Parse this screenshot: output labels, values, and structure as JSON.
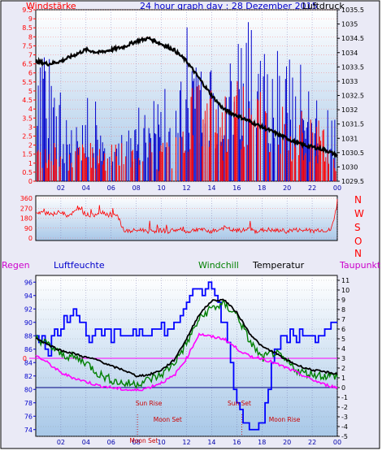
{
  "colors": {
    "wind": "#ff0000",
    "gust": "#0000cc",
    "pressure": "#000000",
    "direction": "#ff0000",
    "humidity": "#0000ff",
    "temperature": "#000000",
    "windchill": "#008000",
    "dewpoint": "#ff00ff",
    "plot_bg_top": "#ffffff",
    "plot_bg_bottom": "#a8c8e8",
    "frame_bg": "#e8e8f8"
  },
  "chart_data": [
    {
      "type": "bar",
      "title": "24 hour graph day : 28 Dezember 2015",
      "left_label": "Windstärke",
      "right_label": "Luftdruck",
      "x_ticks": [
        "02",
        "04",
        "06",
        "08",
        "10",
        "12",
        "14",
        "16",
        "18",
        "20",
        "22",
        "00"
      ],
      "y_left_ticks": [
        "0",
        "0.5",
        "1",
        "1.5",
        "2",
        "2.5",
        "3",
        "3.5",
        "4",
        "4.5",
        "5",
        "5.5",
        "6",
        "6.5",
        "7",
        "7.5",
        "8",
        "8.5",
        "9",
        "9.5"
      ],
      "y_right_ticks": [
        "1029.5",
        "1030",
        "1030.5",
        "1031",
        "1031.5",
        "1032",
        "1032.5",
        "1033",
        "1033.5",
        "1034",
        "1034.5",
        "1035",
        "1035.5"
      ],
      "ylim_left": [
        0,
        9.5
      ],
      "ylim_right": [
        1029.5,
        1035.5
      ],
      "hours": [
        1,
        2,
        3,
        4,
        5,
        6,
        7,
        8,
        9,
        10,
        11,
        12,
        13,
        14,
        15,
        16,
        17,
        18,
        19,
        20,
        21,
        22,
        23,
        24
      ],
      "wind_avg": [
        1.8,
        1.8,
        1.8,
        1.8,
        1.8,
        1.8,
        1.8,
        1.8,
        1.8,
        1.8,
        1.8,
        2.5,
        4.5,
        4.5,
        3.6,
        4.0,
        4.8,
        4.5,
        4.0,
        3.8,
        3.6,
        3.3,
        3.0,
        1.8
      ],
      "wind_gust": [
        9.1,
        7.0,
        3.5,
        4.5,
        5.0,
        3.0,
        2.8,
        3.8,
        4.2,
        4.8,
        6.0,
        7.8,
        9.3,
        8.5,
        7.0,
        7.8,
        9.3,
        9.3,
        8.0,
        7.5,
        7.0,
        6.5,
        4.8,
        4.0
      ],
      "pressure": {
        "x": [
          0,
          1,
          2,
          3,
          4,
          5,
          6,
          7,
          8,
          9,
          10,
          11,
          12,
          13,
          14,
          15,
          16,
          17,
          18,
          19,
          20,
          21,
          22,
          23,
          24
        ],
        "y": [
          1033.7,
          1033.6,
          1033.7,
          1033.9,
          1034.1,
          1034.0,
          1034.1,
          1034.2,
          1034.4,
          1034.5,
          1034.3,
          1034.1,
          1033.7,
          1033.1,
          1032.5,
          1032.0,
          1031.8,
          1031.6,
          1031.4,
          1031.2,
          1031.0,
          1030.8,
          1030.7,
          1030.6,
          1030.4
        ]
      }
    },
    {
      "type": "line",
      "right_labels": [
        "N",
        "W",
        "S",
        "O",
        "N"
      ],
      "y_left_ticks": [
        "0",
        "90",
        "180",
        "270",
        "360"
      ],
      "ylim": [
        0,
        360
      ],
      "series": [
        {
          "x": [
            0,
            0.5,
            1,
            1.5,
            2,
            2.5,
            3,
            3.5,
            4,
            4.5,
            5,
            5.5,
            6,
            6.5,
            7,
            7.5,
            8,
            8.5,
            9,
            9.5,
            10,
            10.5,
            11,
            11.5,
            12,
            12.5,
            13,
            13.5,
            14,
            14.5,
            15,
            15.5,
            16,
            16.5,
            17,
            17.5,
            18,
            18.5,
            19,
            19.5,
            20,
            20.5,
            21,
            21.5,
            22,
            22.5,
            23,
            23.5,
            24
          ],
          "values": [
            220,
            225,
            230,
            215,
            240,
            205,
            230,
            260,
            215,
            200,
            235,
            230,
            195,
            200,
            70,
            60,
            70,
            75,
            60,
            65,
            70,
            60,
            75,
            70,
            55,
            70,
            85,
            65,
            60,
            70,
            95,
            75,
            65,
            70,
            80,
            60,
            70,
            75,
            65,
            70,
            60,
            75,
            70,
            65,
            60,
            75,
            70,
            70,
            300
          ]
        }
      ]
    },
    {
      "type": "line",
      "left_label": "Regen",
      "legend": [
        "Luftfeuchte",
        "Windchill",
        "Temperatur",
        "Taupunkt"
      ],
      "y_left_ticks": [
        "74",
        "76",
        "78",
        "80",
        "82",
        "84",
        "86",
        "88",
        "90",
        "92",
        "94",
        "96"
      ],
      "y_right_ticks": [
        "-5",
        "-4",
        "-3",
        "-2",
        "-1",
        "0",
        "1",
        "2",
        "3",
        "4",
        "5",
        "6",
        "7",
        "8",
        "9",
        "10",
        "11"
      ],
      "ylim_left": [
        73,
        97
      ],
      "ylim_right": [
        -5,
        11.5
      ],
      "reference_line_label": "0",
      "annotations": [
        "Sun Rise",
        "Moon Set",
        "Moon Set",
        "Sun Set",
        "Moon Rise"
      ],
      "series": [
        {
          "x": [
            0,
            1,
            2,
            3,
            4,
            5,
            6,
            7,
            8,
            9,
            10,
            11,
            12,
            13,
            14,
            15,
            16,
            17,
            18,
            19,
            20,
            21,
            22,
            23,
            24
          ],
          "values": [
            88,
            86,
            90,
            92,
            88,
            88,
            88,
            88,
            89,
            89,
            89,
            89,
            93,
            95,
            95,
            90,
            78,
            74,
            76,
            86,
            88,
            88,
            88,
            89,
            89
          ]
        },
        {
          "x": [
            0,
            1,
            2,
            3,
            4,
            5,
            6,
            7,
            8,
            9,
            10,
            11,
            12,
            13,
            14,
            15,
            16,
            17,
            18,
            19,
            20,
            21,
            22,
            23,
            24
          ],
          "values": [
            5.1,
            4.4,
            3.4,
            3.1,
            2.6,
            1.4,
            0.8,
            0.4,
            0.4,
            0.8,
            1.3,
            2.5,
            4.5,
            7.0,
            8.2,
            8.5,
            7.5,
            4.8,
            3.0,
            3.6,
            2.6,
            1.6,
            1.4,
            1.2,
            1.2
          ]
        },
        {
          "x": [
            0,
            1,
            2,
            3,
            4,
            5,
            6,
            7,
            8,
            9,
            10,
            11,
            12,
            13,
            14,
            15,
            16,
            17,
            18,
            19,
            20,
            21,
            22,
            23,
            24
          ],
          "values": [
            5.1,
            4.4,
            3.8,
            3.5,
            3.1,
            2.8,
            2.2,
            1.8,
            1.2,
            1.3,
            1.8,
            2.8,
            5.0,
            7.5,
            8.9,
            9.0,
            7.7,
            5.6,
            4.2,
            3.6,
            2.8,
            2.2,
            1.8,
            1.6,
            1.4
          ]
        },
        {
          "x": [
            0,
            1,
            2,
            3,
            4,
            5,
            6,
            7,
            8,
            9,
            10,
            11,
            12,
            13,
            14,
            15,
            16,
            17,
            18,
            19,
            20,
            21,
            22,
            23,
            24
          ],
          "values": [
            3.3,
            2.5,
            1.5,
            1.0,
            0.6,
            0.2,
            0.0,
            -0.2,
            -0.3,
            0.0,
            0.5,
            1.2,
            3.0,
            5.5,
            5.2,
            5.0,
            4.0,
            3.2,
            3.0,
            2.5,
            2.0,
            1.4,
            0.8,
            0.3,
            0.0
          ]
        }
      ],
      "dewpoint_line_value": 3
    }
  ],
  "xaxis_labels_bottom": [
    "02",
    "04",
    "06",
    "08",
    "10",
    "12",
    "14",
    "16",
    "18",
    "20",
    "22",
    "00"
  ]
}
